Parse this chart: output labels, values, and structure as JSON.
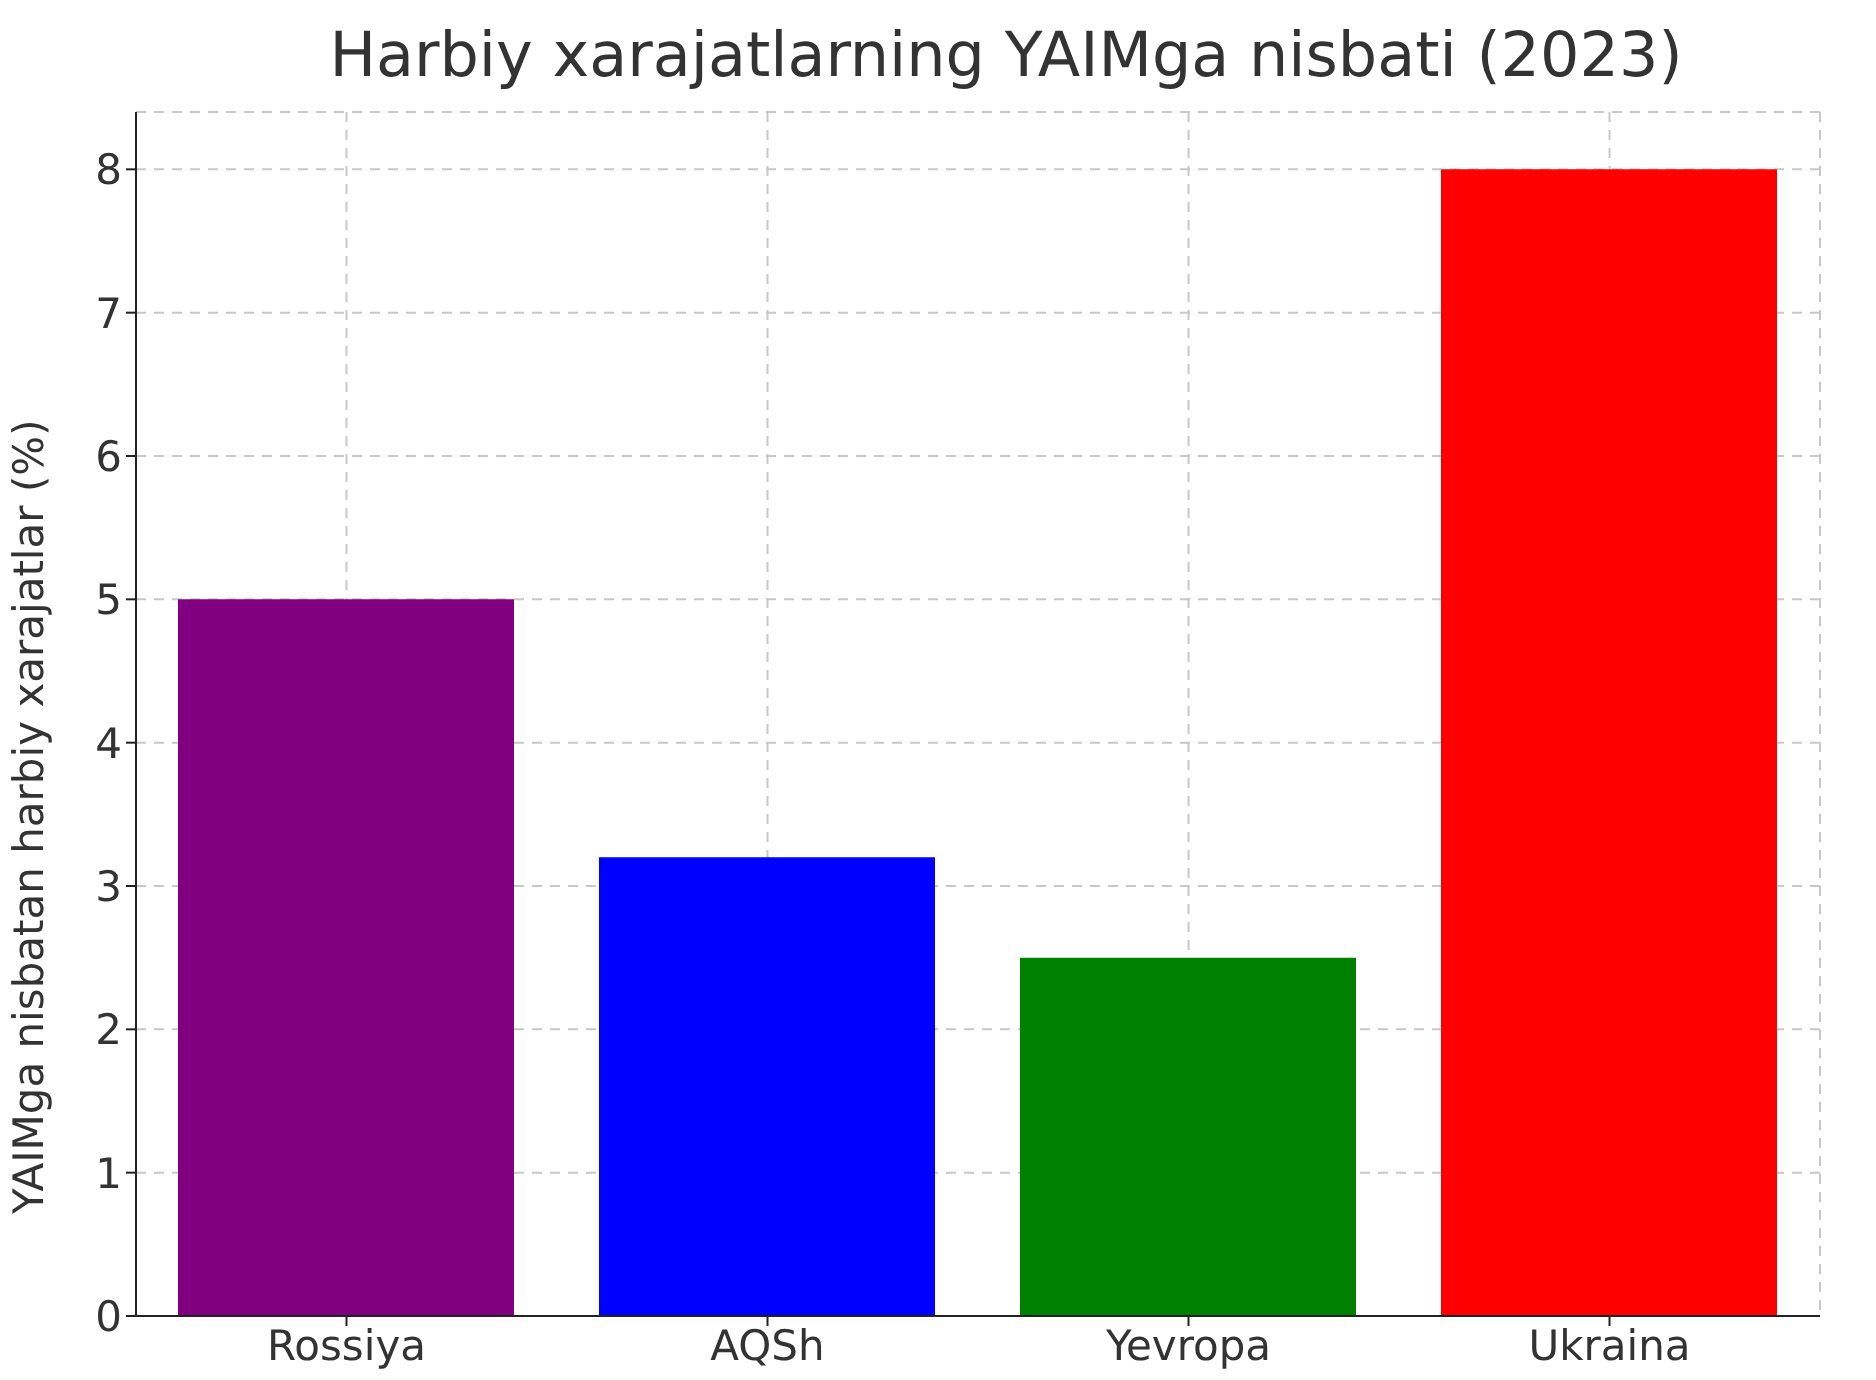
{
  "chart_data": {
    "type": "bar",
    "title": "Harbiy xarajatlarning YAIMga nisbati (2023)",
    "ylabel": "YAIMga nisbatan harbiy xarajatlar (%)",
    "categories": [
      "Rossiya",
      "AQSh",
      "Yevropa",
      "Ukraina"
    ],
    "values": [
      5,
      3.2,
      2.5,
      8
    ],
    "colors": [
      "#800080",
      "#0000ff",
      "#008000",
      "#ff0000"
    ],
    "ylim": [
      0,
      8.4
    ],
    "yticks": [
      0,
      1,
      2,
      3,
      4,
      5,
      6,
      7,
      8
    ],
    "grid": true
  }
}
